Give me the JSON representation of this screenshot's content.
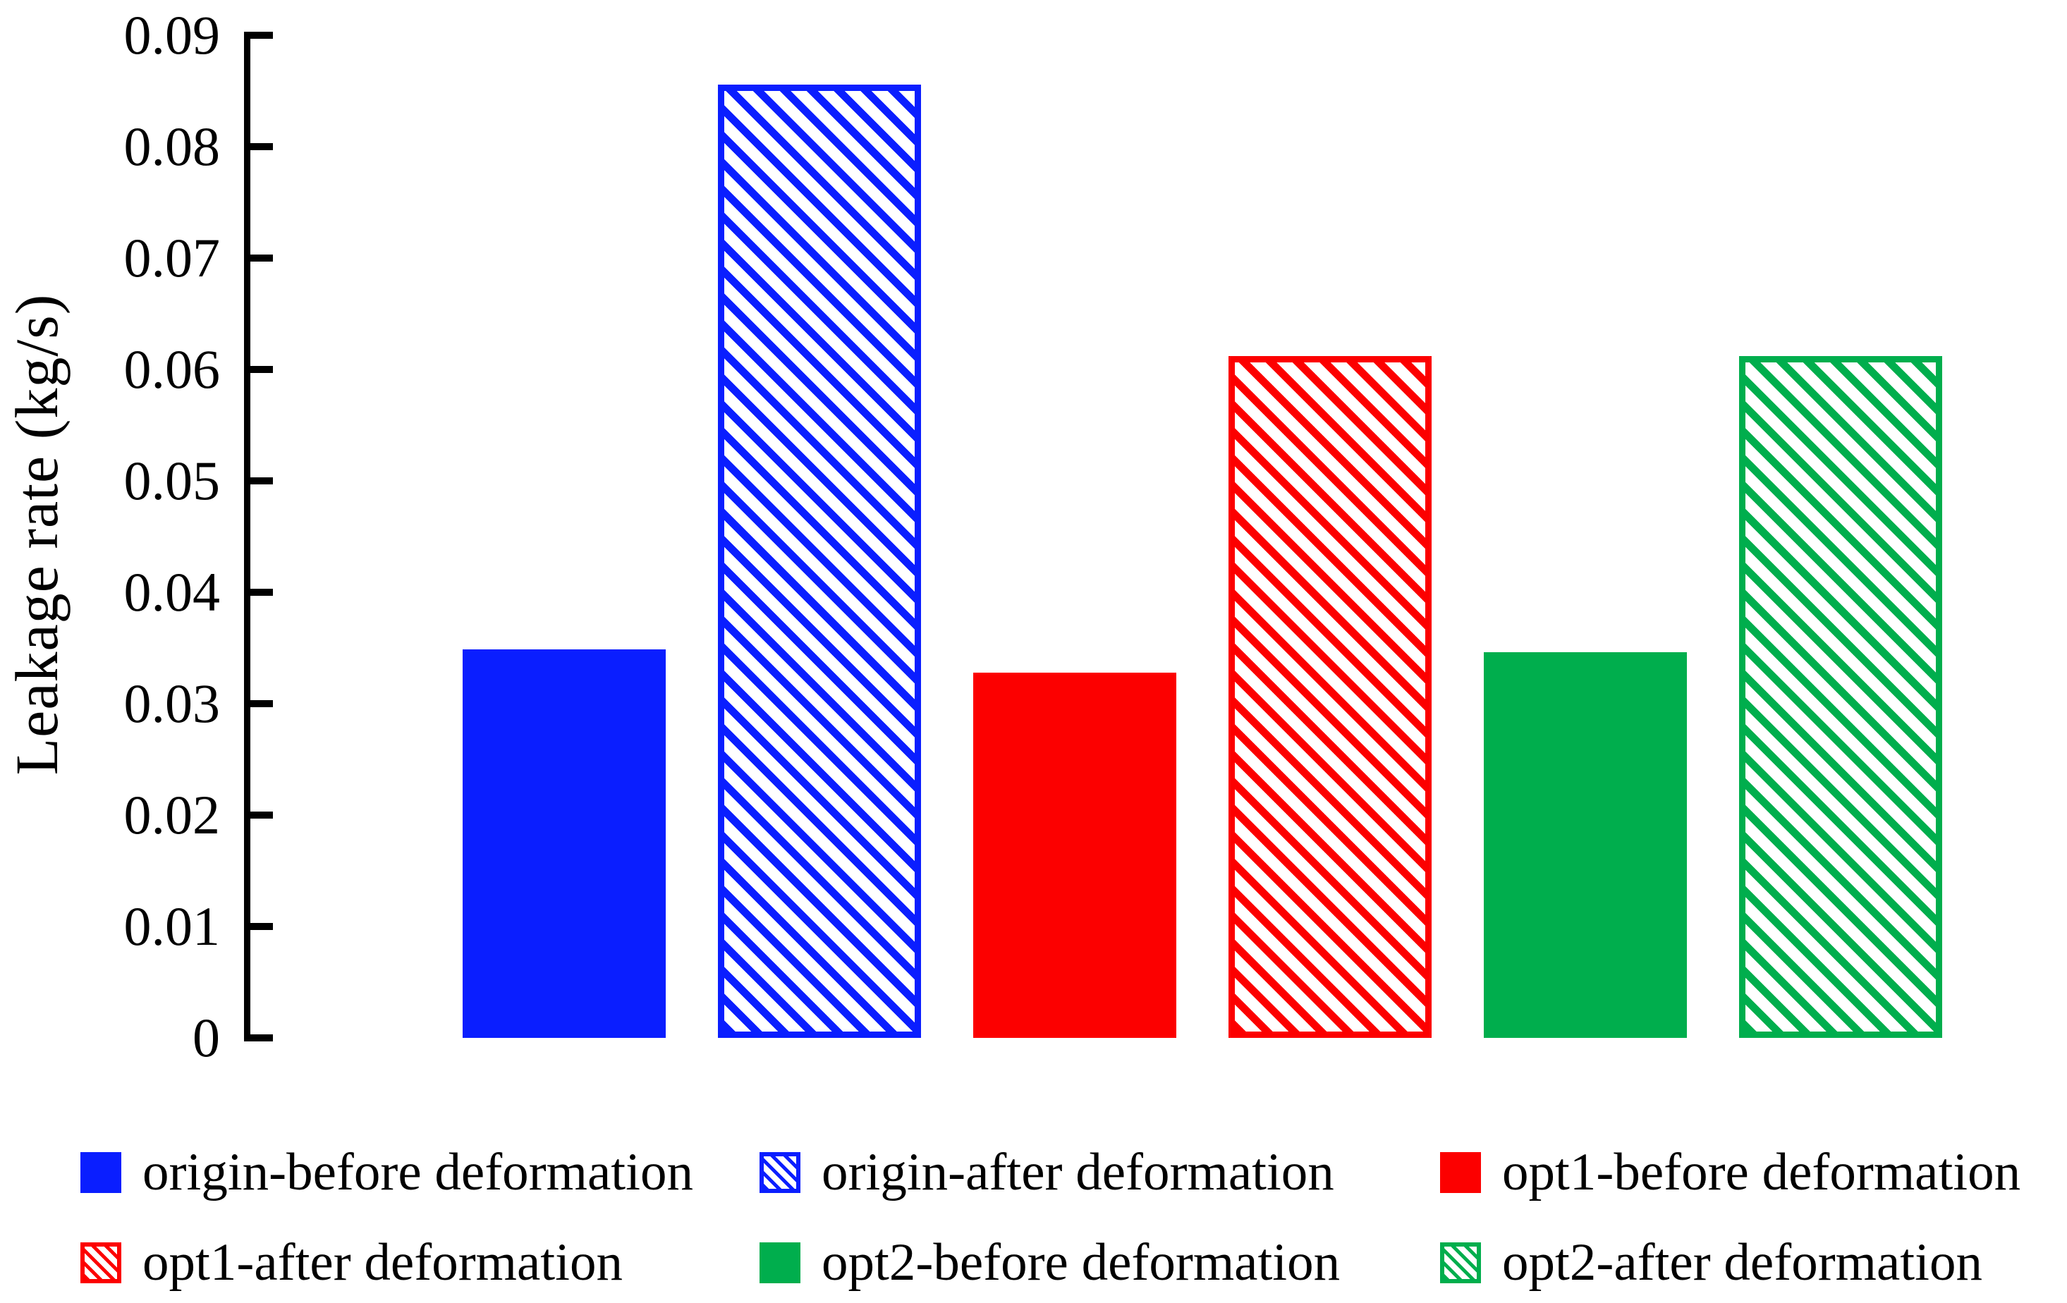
{
  "chart_data": {
    "type": "bar",
    "title": "",
    "xlabel": "",
    "ylabel": "Leakage rate (kg/s)",
    "ylim": [
      0,
      0.09
    ],
    "grid": false,
    "axis_color": "#000000",
    "background_color": "#ffffff",
    "yticks": [
      {
        "label": "0",
        "value": 0
      },
      {
        "label": "0.01",
        "value": 0.01
      },
      {
        "label": "0.02",
        "value": 0.02
      },
      {
        "label": "0.03",
        "value": 0.03
      },
      {
        "label": "0.04",
        "value": 0.04
      },
      {
        "label": "0.05",
        "value": 0.05
      },
      {
        "label": "0.06",
        "value": 0.06
      },
      {
        "label": "0.07",
        "value": 0.07
      },
      {
        "label": "0.08",
        "value": 0.08
      },
      {
        "label": "0.09",
        "value": 0.09
      }
    ],
    "series": [
      {
        "name": "origin-before deformation",
        "value": 0.0349,
        "color": "#0a1eff",
        "pattern": "solid"
      },
      {
        "name": "origin-after deformation",
        "value": 0.0856,
        "color": "#0a1eff",
        "pattern": "hatch"
      },
      {
        "name": "opt1-before deformation",
        "value": 0.0328,
        "color": "#fc0000",
        "pattern": "solid"
      },
      {
        "name": "opt1-after deformation",
        "value": 0.0612,
        "color": "#fc0000",
        "pattern": "hatch"
      },
      {
        "name": "opt2-before deformation",
        "value": 0.0346,
        "color": "#00ae4d",
        "pattern": "solid"
      },
      {
        "name": "opt2-after deformation",
        "value": 0.0612,
        "color": "#00ae4d",
        "pattern": "hatch"
      }
    ],
    "legend": {
      "position": "bottom",
      "rows": 2,
      "columns": 3,
      "items": [
        {
          "label": "origin-before deformation",
          "color": "#0a1eff",
          "pattern": "solid"
        },
        {
          "label": "origin-after deformation",
          "color": "#0a1eff",
          "pattern": "hatch"
        },
        {
          "label": "opt1-before deformation",
          "color": "#fc0000",
          "pattern": "solid"
        },
        {
          "label": "opt1-after deformation",
          "color": "#fc0000",
          "pattern": "hatch"
        },
        {
          "label": "opt2-before deformation",
          "color": "#00ae4d",
          "pattern": "solid"
        },
        {
          "label": "opt2-after deformation",
          "color": "#00ae4d",
          "pattern": "hatch"
        }
      ]
    }
  }
}
